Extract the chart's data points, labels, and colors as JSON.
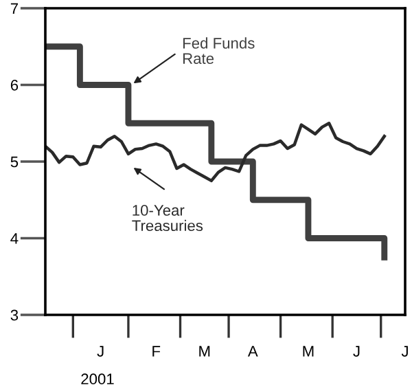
{
  "chart_data": {
    "type": "line",
    "categories": [
      null,
      null,
      null,
      null,
      null,
      null,
      null,
      null,
      "J",
      null,
      null,
      null,
      null,
      null,
      null,
      null,
      "F",
      null,
      null,
      null,
      null,
      null,
      null,
      "M",
      null,
      null,
      null,
      null,
      null,
      null,
      "A",
      null,
      null,
      null,
      null,
      null,
      null,
      null,
      "M",
      null,
      null,
      null,
      null,
      null,
      null,
      "J",
      null,
      null,
      null,
      null,
      null,
      null,
      "J"
    ],
    "series": [
      {
        "type": "step",
        "name": "Fed Funds\nRate",
        "color": "#404040",
        "values": [
          6.5,
          6.5,
          6.5,
          6.5,
          6.5,
          6.0,
          6.0,
          6.0,
          6.0,
          6.0,
          6.0,
          6.0,
          5.5,
          5.5,
          5.5,
          5.5,
          5.5,
          5.5,
          5.5,
          5.5,
          5.5,
          5.5,
          5.5,
          5.5,
          5.0,
          5.0,
          5.0,
          5.0,
          5.0,
          5.0,
          4.5,
          4.5,
          4.5,
          4.5,
          4.5,
          4.5,
          4.5,
          4.5,
          4.0,
          4.0,
          4.0,
          4.0,
          4.0,
          4.0,
          4.0,
          4.0,
          4.0,
          4.0,
          4.0,
          3.75,
          null,
          null,
          null
        ]
      },
      {
        "name": "10-Year\nTreasuries",
        "color": "#2a2a2a",
        "values": [
          5.2,
          5.12,
          4.99,
          5.07,
          5.06,
          4.96,
          4.98,
          5.2,
          5.19,
          5.28,
          5.33,
          5.26,
          5.1,
          5.16,
          5.17,
          5.21,
          5.23,
          5.2,
          5.13,
          4.91,
          4.96,
          4.9,
          4.85,
          4.8,
          4.75,
          4.86,
          4.92,
          4.9,
          4.87,
          5.08,
          5.16,
          5.21,
          5.21,
          5.23,
          5.27,
          5.17,
          5.22,
          5.48,
          5.42,
          5.36,
          5.45,
          5.5,
          5.31,
          5.26,
          5.23,
          5.17,
          5.14,
          5.1,
          5.2,
          5.33,
          null,
          null,
          null
        ]
      }
    ],
    "xlabel": "2001",
    "ylim": [
      3,
      7
    ],
    "yticks": [
      3,
      4,
      5,
      6,
      7
    ],
    "grid": false
  }
}
